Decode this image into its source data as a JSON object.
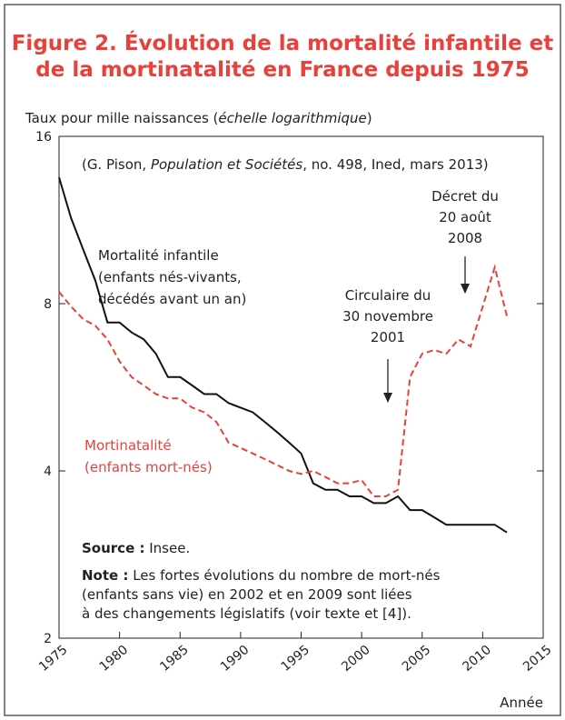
{
  "chart_data": {
    "type": "line",
    "title": [
      "Figure 2. Évolution de la mortalité infantile et",
      "de la mortinatalité en France depuis 1975"
    ],
    "y_label": [
      "Taux pour mille naissances (",
      "échelle logarithmique",
      ")"
    ],
    "credit": [
      "(G. Pison, ",
      "Population et Sociétés",
      ", no. 498, Ined, mars 2013)"
    ],
    "x_label": "Année",
    "log_scale": true,
    "xlim": [
      1975,
      2015
    ],
    "xticks": [
      1975,
      1980,
      1985,
      1990,
      1995,
      2000,
      2005,
      2010,
      2015
    ],
    "ylim": [
      2,
      16
    ],
    "yticks": [
      2,
      4,
      8,
      16
    ],
    "x": [
      1975,
      1976,
      1977,
      1978,
      1979,
      1980,
      1981,
      1982,
      1983,
      1984,
      1985,
      1986,
      1987,
      1988,
      1989,
      1990,
      1991,
      1992,
      1993,
      1994,
      1995,
      1996,
      1997,
      1998,
      1999,
      2000,
      2001,
      2002,
      2003,
      2004,
      2005,
      2006,
      2007,
      2008,
      2009,
      2010,
      2011,
      2012
    ],
    "series": [
      {
        "name": "Mortalité infantile",
        "note": [
          "(enfants nés-vivants,",
          "décédés avant un an)"
        ],
        "color": "#111111",
        "dashed": false,
        "values": [
          13.5,
          11.4,
          10.0,
          8.8,
          7.4,
          7.4,
          7.1,
          6.9,
          6.5,
          5.9,
          5.9,
          5.7,
          5.5,
          5.5,
          5.3,
          5.2,
          5.1,
          4.9,
          4.7,
          4.5,
          4.3,
          3.8,
          3.7,
          3.7,
          3.6,
          3.6,
          3.5,
          3.5,
          3.6,
          3.4,
          3.4,
          3.3,
          3.2,
          3.2,
          3.2,
          3.2,
          3.2,
          3.1
        ]
      },
      {
        "name": "Mortinatalité",
        "note": [
          "(enfants mort-nés)"
        ],
        "color": "#e8413c",
        "dashed": true,
        "values": [
          8.4,
          7.9,
          7.5,
          7.3,
          6.9,
          6.3,
          5.9,
          5.7,
          5.5,
          5.4,
          5.4,
          5.2,
          5.1,
          4.9,
          4.5,
          4.4,
          4.3,
          4.2,
          4.1,
          4.0,
          3.95,
          4.0,
          3.9,
          3.8,
          3.8,
          3.85,
          3.6,
          3.6,
          3.7,
          5.9,
          6.5,
          6.6,
          6.5,
          6.9,
          6.7,
          7.9,
          9.3,
          7.6
        ]
      }
    ],
    "annotations": [
      {
        "lines": [
          "Circulaire du",
          "30 novembre",
          "2001"
        ]
      },
      {
        "lines": [
          "Décret du",
          "20 août",
          "2008"
        ]
      }
    ],
    "source": {
      "label": "Source :",
      "text": " Insee."
    },
    "note": {
      "label": "Note :",
      "lines": [
        " Les fortes évolutions du nombre de mort-nés",
        "(enfants sans vie) en 2002 et en 2009 sont liées",
        "à des changements législatifs (voir texte et [4])."
      ]
    }
  }
}
